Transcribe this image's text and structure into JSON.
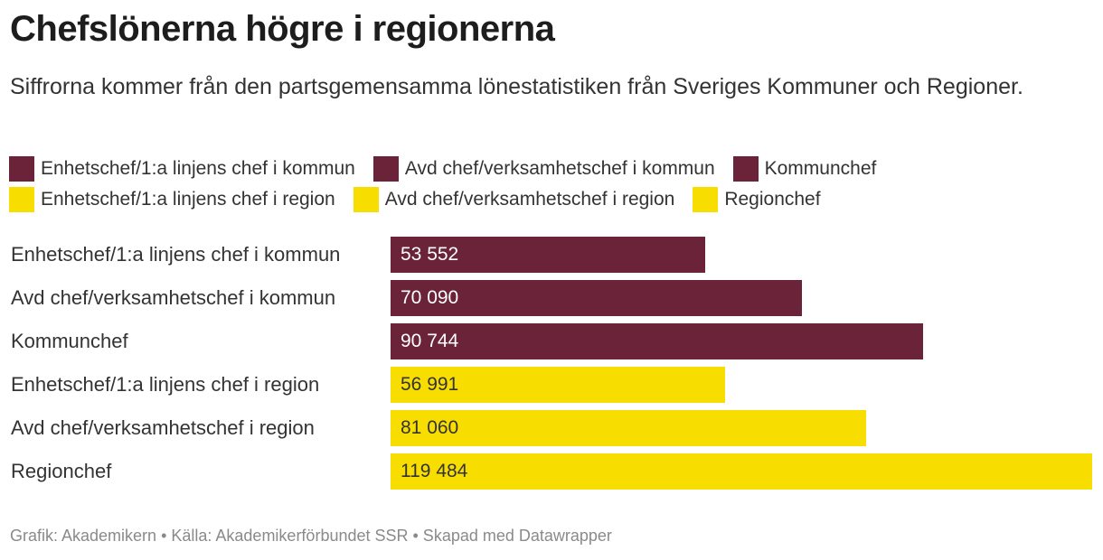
{
  "title": "Chefslönerna högre i regionerna",
  "subtitle": "Siffrorna kommer från den partsgemensamma lönestatistiken från Sveriges Kommuner och Regioner.",
  "colors": {
    "kommun": "#6b2339",
    "region": "#f7dd00",
    "kommun_text": "#ffffff",
    "region_text": "#333333"
  },
  "legend": [
    [
      {
        "label": "Enhetschef/1:a linjens chef i kommun",
        "color": "#6b2339"
      },
      {
        "label": "Avd chef/verksamhetschef i kommun",
        "color": "#6b2339"
      },
      {
        "label": "Kommunchef",
        "color": "#6b2339"
      }
    ],
    [
      {
        "label": "Enhetschef/1:a linjens chef i region",
        "color": "#f7dd00"
      },
      {
        "label": "Avd chef/verksamhetschef i region",
        "color": "#f7dd00"
      },
      {
        "label": "Regionchef",
        "color": "#f7dd00"
      }
    ]
  ],
  "chart_data": {
    "type": "bar",
    "orientation": "horizontal",
    "title": "Chefslönerna högre i regionerna",
    "categories": [
      "Enhetschef/1:a linjens chef i kommun",
      "Avd chef/verksamhetschef i kommun",
      "Kommunchef",
      "Enhetschef/1:a linjens chef i region",
      "Avd chef/verksamhetschef i region",
      "Regionchef"
    ],
    "values": [
      53552,
      70090,
      90744,
      56991,
      81060,
      119484
    ],
    "value_labels": [
      "53 552",
      "70 090",
      "90 744",
      "56 991",
      "81 060",
      "119 484"
    ],
    "bar_colors": [
      "#6b2339",
      "#6b2339",
      "#6b2339",
      "#f7dd00",
      "#f7dd00",
      "#f7dd00"
    ],
    "xlim": [
      0,
      119484
    ],
    "xlabel": "",
    "ylabel": ""
  },
  "footer": "Grafik: Akademikern • Källa: Akademikerförbundet SSR • Skapad med Datawrapper"
}
